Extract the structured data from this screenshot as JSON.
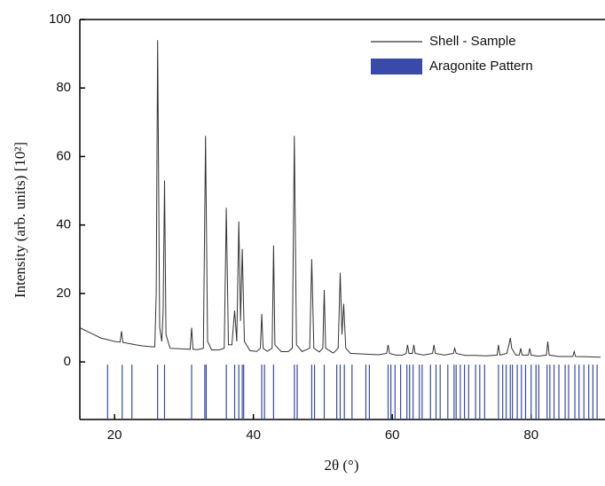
{
  "chart_data": {
    "type": "line",
    "xlabel": "2θ (°)",
    "ylabel": "Intensity (arb. units) [10²]",
    "xlim": [
      15,
      90
    ],
    "ylim": [
      -16.8,
      100
    ],
    "xticks": [
      20,
      40,
      60,
      80
    ],
    "yticks": [
      0,
      20,
      40,
      60,
      80,
      100
    ],
    "legend": "upper right",
    "series": [
      {
        "name": "Shell - Sample",
        "color": "#333333",
        "x": [
          15,
          16,
          17,
          18,
          19,
          20,
          20.8,
          21.0,
          21.2,
          22,
          23,
          24,
          25,
          25.8,
          26.0,
          26.2,
          26.5,
          26.8,
          27.0,
          27.2,
          27.4,
          28,
          29,
          30,
          30.9,
          31.1,
          31.3,
          32,
          32.8,
          33.1,
          33.4,
          34,
          35,
          35.8,
          36.1,
          36.4,
          36.9,
          37.3,
          37.6,
          37.9,
          38.15,
          38.4,
          38.7,
          39.5,
          40.5,
          41.0,
          41.2,
          41.4,
          42,
          42.7,
          42.9,
          43.1,
          44,
          45,
          45.6,
          45.9,
          46.2,
          47,
          48.1,
          48.4,
          48.7,
          49.5,
          50.0,
          50.2,
          50.4,
          51.5,
          52.2,
          52.5,
          52.75,
          53.0,
          53.3,
          54,
          55,
          56,
          57,
          58,
          59.2,
          59.4,
          59.6,
          60.5,
          61.5,
          62.0,
          62.2,
          62.4,
          62.9,
          63.1,
          63.3,
          64.5,
          65.8,
          66.0,
          66.2,
          67.5,
          68.8,
          69.0,
          69.2,
          70.5,
          72,
          73.5,
          75.1,
          75.3,
          75.5,
          76.5,
          76.8,
          77.0,
          77.2,
          77.8,
          78.3,
          78.5,
          78.7,
          79.6,
          79.8,
          80.0,
          81,
          82.2,
          82.4,
          82.6,
          84,
          86.0,
          86.2,
          86.4,
          88,
          90
        ],
        "values": [
          10,
          9,
          8,
          7,
          6.5,
          6,
          5.8,
          9,
          5.7,
          5.4,
          5,
          4.7,
          4.5,
          4.4,
          20,
          94,
          10,
          6,
          15,
          53,
          8,
          4,
          3.9,
          3.8,
          3.7,
          10,
          3.7,
          3.6,
          4,
          66,
          6,
          3.5,
          3.5,
          4,
          45,
          5,
          5,
          15,
          6,
          41,
          12,
          33,
          6,
          3.3,
          3.1,
          4,
          14,
          4,
          3.1,
          4,
          34,
          5,
          3,
          3,
          4,
          66,
          5,
          3,
          4,
          30,
          4,
          2.9,
          4,
          21,
          4,
          2.6,
          4,
          26,
          8,
          17,
          4,
          2.5,
          2.4,
          2.3,
          2.2,
          2.1,
          2.5,
          5,
          2.5,
          2,
          2,
          2.5,
          5,
          2.5,
          2.5,
          5,
          2.5,
          2,
          2.5,
          5,
          2.5,
          2,
          2.5,
          4,
          2.5,
          1.9,
          1.9,
          1.8,
          2,
          5,
          2,
          2.5,
          5,
          7,
          4,
          2,
          2,
          4,
          2,
          2,
          4,
          2,
          1.7,
          2,
          6,
          2,
          1.6,
          1.6,
          3,
          1.6,
          1.5,
          1.4
        ]
      },
      {
        "name": "Aragonite Pattern",
        "color": "#3a4aa8",
        "x": [
          19.0,
          21.1,
          22.5,
          26.2,
          27.2,
          31.1,
          33.0,
          33.2,
          36.1,
          37.3,
          37.9,
          38.4,
          38.6,
          41.2,
          41.6,
          42.9,
          45.9,
          46.3,
          48.4,
          48.8,
          50.2,
          52.0,
          52.5,
          53.1,
          54.2,
          56.2,
          56.7,
          59.4,
          59.8,
          60.4,
          61.2,
          62.1,
          62.5,
          63.0,
          63.9,
          64.3,
          65.5,
          66.3,
          66.9,
          68.0,
          68.9,
          69.2,
          69.8,
          70.4,
          71.0,
          72.0,
          72.6,
          73.3,
          75.3,
          75.9,
          76.4,
          77.0,
          77.3,
          78.0,
          78.6,
          79.2,
          80.0,
          80.7,
          81.1,
          82.3,
          82.7,
          83.3,
          84.0,
          84.9,
          85.4,
          86.3,
          86.9,
          87.6,
          88.3,
          88.9,
          89.5
        ]
      }
    ]
  }
}
